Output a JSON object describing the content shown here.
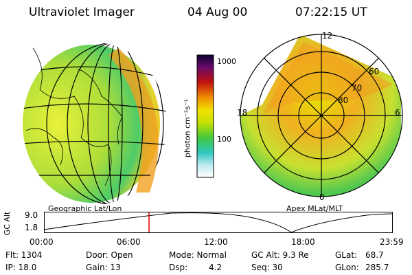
{
  "header": {
    "instrument": "Ultraviolet Imager",
    "date": "04 Aug 00",
    "time": "07:22:15 UT"
  },
  "left_panel": {
    "caption": "Geographic Lat/Lon"
  },
  "colorbar": {
    "unit_label": "photon cm⁻²s⁻¹",
    "ticks": [
      "1000",
      "100"
    ]
  },
  "polar_panel": {
    "caption": "Apex MLat/MLT",
    "mlt_labels": [
      "12",
      "18",
      "6",
      "0"
    ],
    "lat_labels": [
      "60",
      "70",
      "80"
    ]
  },
  "timeline": {
    "axis_label": "GC Alt",
    "y_ticks": [
      "9.0",
      "1.8"
    ],
    "x_ticks": [
      "00:00",
      "06:00",
      "12:00",
      "18:00",
      "23:59"
    ]
  },
  "info": {
    "flt": "Flt: 1304",
    "ip": "IP: 18.0",
    "door": "Door: Open",
    "gain": "Gain: 13",
    "mode": "Mode: Normal",
    "dsp_label": "Dsp:",
    "dsp_value": "4.2",
    "gcalt": "GC Alt: 9.3 Re",
    "seq": "Seq: 30",
    "glat_label": "GLat:",
    "glat_value": "68.7",
    "glon_label": "GLon:",
    "glon_value": "285.7"
  },
  "colors": {
    "marker": "#e00000",
    "aurora_low": "#3cc850",
    "aurora_mid": "#e6e600",
    "aurora_high": "#f0a020"
  }
}
